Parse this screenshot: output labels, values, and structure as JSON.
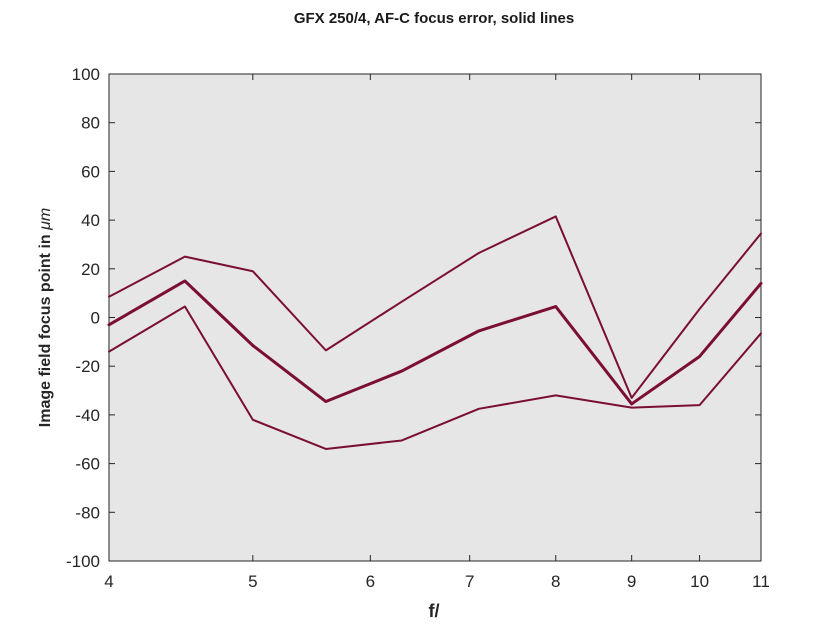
{
  "chart_data": {
    "type": "line",
    "title": "GFX 250/4, AF-C focus error, solid lines",
    "xlabel": "f/",
    "ylabel_prefix": "Image field focus point in ",
    "ylabel_unit": "μm",
    "x_scale": "log",
    "xlim": [
      4,
      11
    ],
    "ylim": [
      -100,
      100
    ],
    "x_ticks": [
      4,
      5,
      6,
      7,
      8,
      9,
      10,
      11
    ],
    "x_tick_labels": [
      "4",
      "5",
      "6",
      "7",
      "8",
      "9",
      "10",
      "11"
    ],
    "y_ticks": [
      100,
      80,
      60,
      40,
      20,
      0,
      -20,
      -40,
      -60,
      -80,
      -100
    ],
    "y_tick_labels": [
      "100",
      "80",
      "60",
      "40",
      "20",
      "0",
      "-20",
      "-40",
      "-60",
      "-80",
      "-100"
    ],
    "grid": false,
    "x": [
      4,
      4.5,
      5,
      5.6,
      6.3,
      7.1,
      8,
      9,
      10,
      11
    ],
    "series": [
      {
        "values": [
          8.5,
          25,
          19,
          -13.5,
          6.5,
          26.5,
          41.5,
          -33,
          3.5,
          34.5
        ],
        "color": "#7a0e35",
        "width": 2
      },
      {
        "values": [
          -3,
          15,
          -11.5,
          -34.5,
          -22,
          -5.5,
          4.5,
          -35.5,
          -16,
          14
        ],
        "color": "#7a0e35",
        "width": 3
      },
      {
        "values": [
          -14,
          4.5,
          -42,
          -54,
          -50.5,
          -37.5,
          -32,
          -37,
          -36,
          -6.5
        ],
        "color": "#7a0e35",
        "width": 2
      }
    ],
    "plot_background": "#e6e6e6",
    "axis_color": "#262626"
  }
}
